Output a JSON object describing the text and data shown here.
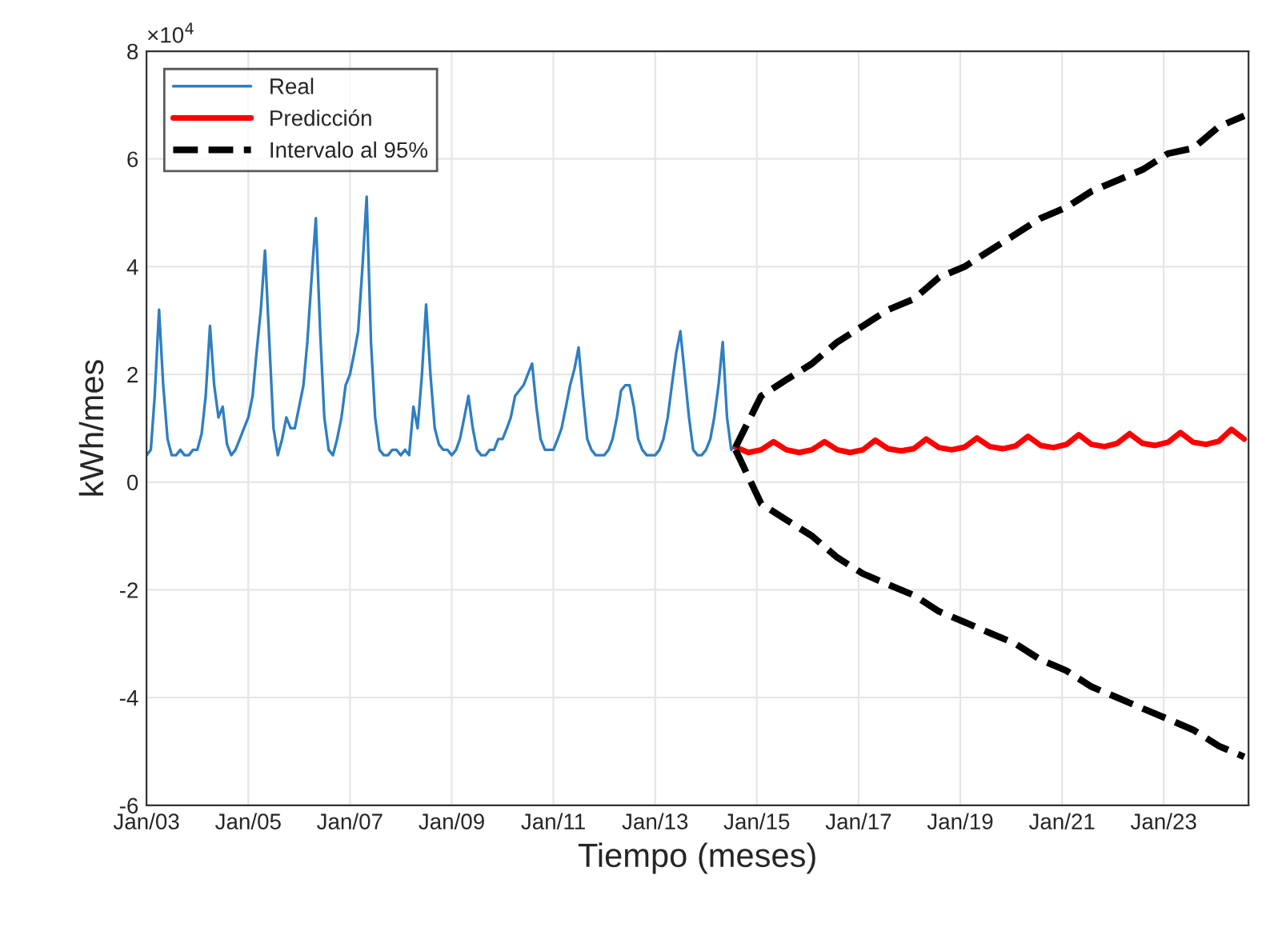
{
  "chart_data": {
    "type": "line",
    "xlabel": "Tiempo (meses)",
    "ylabel": "kWh/mes",
    "annotations": [
      "×10$^{4}$"
    ],
    "xlim": [
      "2003-01",
      "2024-09"
    ],
    "xticks": [
      {
        "value": "2003-01",
        "label": "Jan/03"
      },
      {
        "value": "2005-01",
        "label": "Jan/05"
      },
      {
        "value": "2007-01",
        "label": "Jan/07"
      },
      {
        "value": "2009-01",
        "label": "Jan/09"
      },
      {
        "value": "2011-01",
        "label": "Jan/11"
      },
      {
        "value": "2013-01",
        "label": "Jan/13"
      },
      {
        "value": "2015-01",
        "label": "Jan/15"
      },
      {
        "value": "2017-01",
        "label": "Jan/17"
      },
      {
        "value": "2019-01",
        "label": "Jan/19"
      },
      {
        "value": "2021-01",
        "label": "Jan/21"
      },
      {
        "value": "2023-01",
        "label": "Jan/23"
      }
    ],
    "ylim": [
      -6,
      8
    ],
    "yticks": [
      -6,
      -4,
      -2,
      0,
      2,
      4,
      6,
      8
    ],
    "grid": true,
    "legend": "top left",
    "marker": "none",
    "series": [
      {
        "name": "Real",
        "color": "#2f7fc1",
        "line_style": "solid",
        "x": [
          "2003-01",
          "2003-02",
          "2003-03",
          "2003-04",
          "2003-05",
          "2003-06",
          "2003-07",
          "2003-08",
          "2003-09",
          "2003-10",
          "2003-11",
          "2003-12",
          "2004-01",
          "2004-02",
          "2004-03",
          "2004-04",
          "2004-05",
          "2004-06",
          "2004-07",
          "2004-08",
          "2004-09",
          "2004-10",
          "2004-11",
          "2004-12",
          "2005-01",
          "2005-02",
          "2005-03",
          "2005-04",
          "2005-05",
          "2005-06",
          "2005-07",
          "2005-08",
          "2005-09",
          "2005-10",
          "2005-11",
          "2005-12",
          "2006-01",
          "2006-02",
          "2006-03",
          "2006-04",
          "2006-05",
          "2006-06",
          "2006-07",
          "2006-08",
          "2006-09",
          "2006-10",
          "2006-11",
          "2006-12",
          "2007-01",
          "2007-02",
          "2007-03",
          "2007-04",
          "2007-05",
          "2007-06",
          "2007-07",
          "2007-08",
          "2007-09",
          "2007-10",
          "2007-11",
          "2007-12",
          "2008-01",
          "2008-02",
          "2008-03",
          "2008-04",
          "2008-05",
          "2008-06",
          "2008-07",
          "2008-08",
          "2008-09",
          "2008-10",
          "2008-11",
          "2008-12",
          "2009-01",
          "2009-02",
          "2009-03",
          "2009-04",
          "2009-05",
          "2009-06",
          "2009-07",
          "2009-08",
          "2009-09",
          "2009-10",
          "2009-11",
          "2009-12",
          "2010-01",
          "2010-02",
          "2010-03",
          "2010-04",
          "2010-05",
          "2010-06",
          "2010-07",
          "2010-08",
          "2010-09",
          "2010-10",
          "2010-11",
          "2010-12",
          "2011-01",
          "2011-02",
          "2011-03",
          "2011-04",
          "2011-05",
          "2011-06",
          "2011-07",
          "2011-08",
          "2011-09",
          "2011-10",
          "2011-11",
          "2011-12",
          "2012-01",
          "2012-02",
          "2012-03",
          "2012-04",
          "2012-05",
          "2012-06",
          "2012-07",
          "2012-08",
          "2012-09",
          "2012-10",
          "2012-11",
          "2012-12",
          "2013-01",
          "2013-02",
          "2013-03",
          "2013-04",
          "2013-05",
          "2013-06",
          "2013-07",
          "2013-08",
          "2013-09",
          "2013-10",
          "2013-11",
          "2013-12",
          "2014-01",
          "2014-02",
          "2014-03",
          "2014-04",
          "2014-05",
          "2014-06",
          "2014-07",
          "2014-08"
        ],
        "values": [
          0.5,
          0.6,
          1.6,
          3.2,
          1.8,
          0.8,
          0.5,
          0.5,
          0.6,
          0.5,
          0.5,
          0.6,
          0.6,
          0.9,
          1.6,
          2.9,
          1.8,
          1.2,
          1.4,
          0.7,
          0.5,
          0.6,
          0.8,
          1.0,
          1.2,
          1.6,
          2.4,
          3.2,
          4.3,
          2.6,
          1.0,
          0.5,
          0.8,
          1.2,
          1.0,
          1.0,
          1.4,
          1.8,
          2.6,
          3.8,
          4.9,
          2.8,
          1.2,
          0.6,
          0.5,
          0.8,
          1.2,
          1.8,
          2.0,
          2.4,
          2.8,
          4.0,
          5.3,
          2.6,
          1.2,
          0.6,
          0.5,
          0.5,
          0.6,
          0.6,
          0.5,
          0.6,
          0.5,
          1.4,
          1.0,
          2.0,
          3.3,
          2.0,
          1.0,
          0.7,
          0.6,
          0.6,
          0.5,
          0.6,
          0.8,
          1.2,
          1.6,
          1.0,
          0.6,
          0.5,
          0.5,
          0.6,
          0.6,
          0.8,
          0.8,
          1.0,
          1.2,
          1.6,
          1.7,
          1.8,
          2.0,
          2.2,
          1.4,
          0.8,
          0.6,
          0.6,
          0.6,
          0.8,
          1.0,
          1.4,
          1.8,
          2.1,
          2.5,
          1.6,
          0.8,
          0.6,
          0.5,
          0.5,
          0.5,
          0.6,
          0.8,
          1.2,
          1.7,
          1.8,
          1.8,
          1.4,
          0.8,
          0.6,
          0.5,
          0.5,
          0.5,
          0.6,
          0.8,
          1.2,
          1.8,
          2.4,
          2.8,
          2.0,
          1.2,
          0.6,
          0.5,
          0.5,
          0.6,
          0.8,
          1.2,
          1.8,
          2.6,
          1.2,
          0.6,
          0.7
        ]
      },
      {
        "name": "Predicción",
        "color": "#ff0000",
        "line_style": "solid",
        "x": [
          "2014-08",
          "2014-11",
          "2015-02",
          "2015-05",
          "2015-08",
          "2015-11",
          "2016-02",
          "2016-05",
          "2016-08",
          "2016-11",
          "2017-02",
          "2017-05",
          "2017-08",
          "2017-11",
          "2018-02",
          "2018-05",
          "2018-08",
          "2018-11",
          "2019-02",
          "2019-05",
          "2019-08",
          "2019-11",
          "2020-02",
          "2020-05",
          "2020-08",
          "2020-11",
          "2021-02",
          "2021-05",
          "2021-08",
          "2021-11",
          "2022-02",
          "2022-05",
          "2022-08",
          "2022-11",
          "2023-02",
          "2023-05",
          "2023-08",
          "2023-11",
          "2024-02",
          "2024-05",
          "2024-08"
        ],
        "values": [
          0.65,
          0.55,
          0.6,
          0.75,
          0.6,
          0.55,
          0.6,
          0.75,
          0.6,
          0.55,
          0.6,
          0.78,
          0.62,
          0.58,
          0.62,
          0.8,
          0.64,
          0.6,
          0.65,
          0.82,
          0.66,
          0.62,
          0.67,
          0.85,
          0.68,
          0.64,
          0.7,
          0.88,
          0.7,
          0.66,
          0.72,
          0.9,
          0.72,
          0.68,
          0.74,
          0.92,
          0.74,
          0.7,
          0.76,
          0.98,
          0.8
        ]
      },
      {
        "name": "Intervalo al 95%",
        "color": "#000000",
        "line_style": "dashed",
        "x": [
          "2014-08",
          "2015-02",
          "2015-08",
          "2016-02",
          "2016-08",
          "2017-02",
          "2017-08",
          "2018-02",
          "2018-08",
          "2019-02",
          "2019-08",
          "2020-02",
          "2020-08",
          "2021-02",
          "2021-08",
          "2022-02",
          "2022-08",
          "2023-02",
          "2023-08",
          "2024-02",
          "2024-08"
        ],
        "values": [
          0.65,
          1.6,
          1.9,
          2.2,
          2.6,
          2.9,
          3.2,
          3.4,
          3.8,
          4.0,
          4.3,
          4.6,
          4.9,
          5.1,
          5.4,
          5.6,
          5.8,
          6.1,
          6.2,
          6.6,
          6.8
        ]
      },
      {
        "color": "#000000",
        "line_style": "dashed",
        "x": [
          "2014-08",
          "2015-02",
          "2015-08",
          "2016-02",
          "2016-08",
          "2017-02",
          "2017-08",
          "2018-02",
          "2018-08",
          "2019-02",
          "2019-08",
          "2020-02",
          "2020-08",
          "2021-02",
          "2021-08",
          "2022-02",
          "2022-08",
          "2023-02",
          "2023-08",
          "2024-02",
          "2024-08"
        ],
        "values": [
          0.6,
          -0.4,
          -0.7,
          -1.0,
          -1.4,
          -1.7,
          -1.9,
          -2.1,
          -2.4,
          -2.6,
          -2.8,
          -3.0,
          -3.3,
          -3.5,
          -3.8,
          -4.0,
          -4.2,
          -4.4,
          -4.6,
          -4.9,
          -5.1
        ]
      }
    ]
  }
}
